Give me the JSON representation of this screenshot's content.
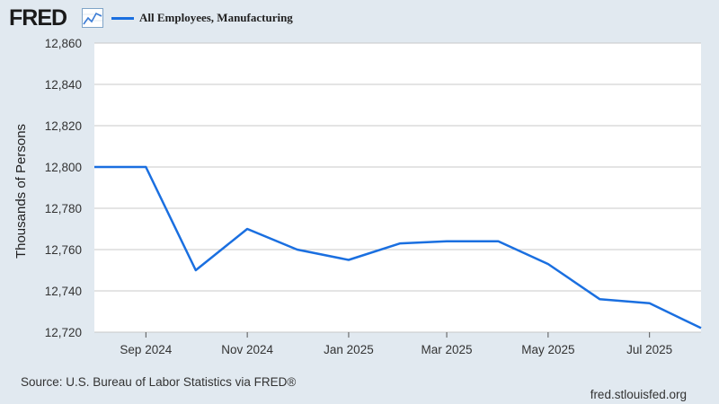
{
  "header": {
    "logo_text": "FRED",
    "logo_icon": "line-chart-icon",
    "series_label": "All Employees, Manufacturing",
    "series_color": "#1a6fe0"
  },
  "footer": {
    "source": "Source: U.S. Bureau of Labor Statistics via FRED®",
    "site": "fred.stlouisfed.org"
  },
  "chart_data": {
    "type": "line",
    "title": "",
    "xlabel": "",
    "ylabel": "Thousands of Persons",
    "ylim": [
      12720,
      12860
    ],
    "yticks": [
      12720,
      12740,
      12760,
      12780,
      12800,
      12820,
      12840,
      12860
    ],
    "ytick_labels": [
      "12,720",
      "12,740",
      "12,760",
      "12,780",
      "12,800",
      "12,820",
      "12,840",
      "12,860"
    ],
    "xticks": [
      "2024-09-01",
      "2024-11-01",
      "2025-01-01",
      "2025-03-01",
      "2025-05-01",
      "2025-07-01"
    ],
    "xtick_labels": [
      "Sep 2024",
      "Nov 2024",
      "Jan 2025",
      "Mar 2025",
      "May 2025",
      "Jul 2025"
    ],
    "grid": true,
    "legend": "top-left",
    "series": [
      {
        "name": "All Employees, Manufacturing",
        "color": "#1a6fe0",
        "x": [
          "2024-08-01",
          "2024-09-01",
          "2024-10-01",
          "2024-11-01",
          "2024-12-01",
          "2025-01-01",
          "2025-02-01",
          "2025-03-01",
          "2025-04-01",
          "2025-05-01",
          "2025-06-01",
          "2025-07-01",
          "2025-08-01"
        ],
        "values": [
          12800,
          12800,
          12750,
          12770,
          12760,
          12755,
          12763,
          12764,
          12764,
          12753,
          12736,
          12734,
          12722
        ]
      }
    ]
  }
}
